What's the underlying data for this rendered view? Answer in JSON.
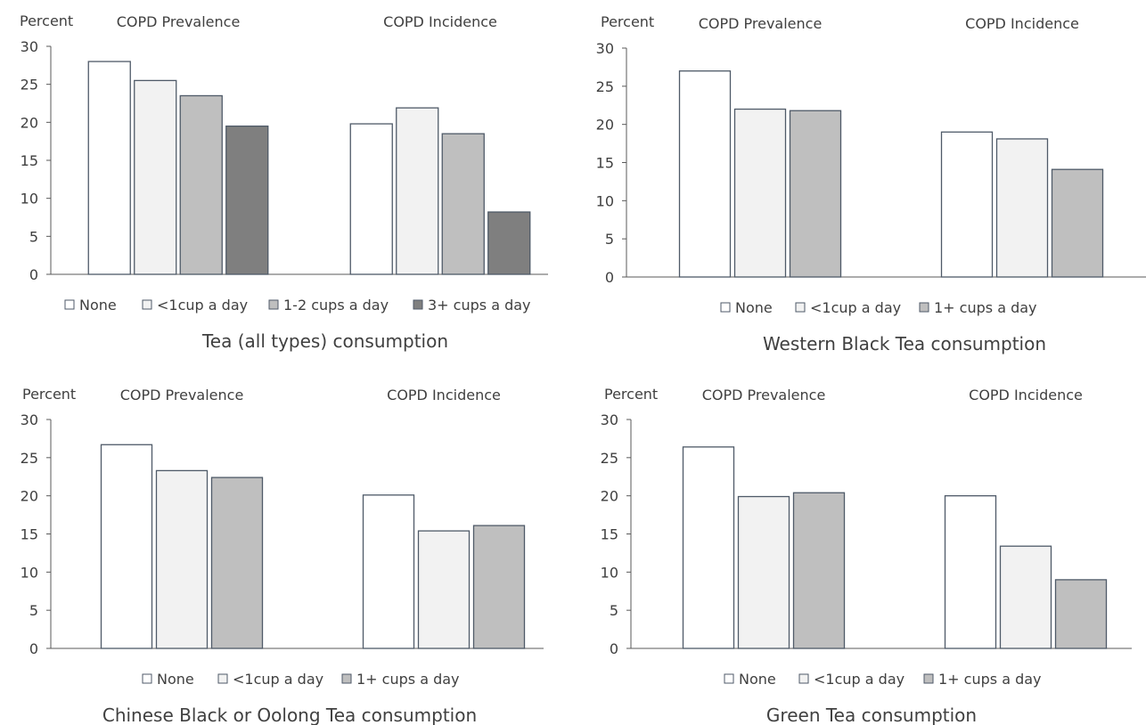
{
  "colors": {
    "None": "#ffffff",
    "<1cup a day": "#f2f2f2",
    "1-2 cups a day": "#bfbfbf",
    "3+ cups a day": "#7f7f7f",
    "1+ cups a day": "#bfbfbf",
    "bar_stroke": "#4f5a68",
    "axis": "#595959",
    "text": "#404040"
  },
  "chart_data": [
    {
      "type": "bar",
      "title": "Tea (all types) consumption",
      "ylabel": "Percent",
      "categories": [
        "COPD Prevalence",
        "COPD Incidence"
      ],
      "ylim": [
        0,
        30
      ],
      "yticks": [
        "0",
        "5",
        "10",
        "15",
        "20",
        "25",
        "30"
      ],
      "grid": false,
      "legend": "bottom",
      "series": [
        {
          "name": "None",
          "values": [
            28.0,
            19.8
          ]
        },
        {
          "name": "<1cup a day",
          "values": [
            25.5,
            21.9
          ]
        },
        {
          "name": "1-2 cups a day",
          "values": [
            23.5,
            18.5
          ]
        },
        {
          "name": "3+ cups a day",
          "values": [
            19.5,
            8.2
          ]
        }
      ]
    },
    {
      "type": "bar",
      "title": "Western Black Tea consumption",
      "ylabel": "Percent",
      "categories": [
        "COPD Prevalence",
        "COPD Incidence"
      ],
      "ylim": [
        0,
        30
      ],
      "yticks": [
        "0",
        "5",
        "10",
        "15",
        "20",
        "25",
        "30"
      ],
      "grid": false,
      "legend": "bottom",
      "series": [
        {
          "name": "None",
          "values": [
            27.0,
            19.0
          ]
        },
        {
          "name": "<1cup a day",
          "values": [
            22.0,
            18.1
          ]
        },
        {
          "name": "1+ cups a day",
          "values": [
            21.8,
            14.1
          ]
        }
      ]
    },
    {
      "type": "bar",
      "title": "Chinese Black or Oolong Tea consumption",
      "ylabel": "Percent",
      "categories": [
        "COPD Prevalence",
        "COPD Incidence"
      ],
      "ylim": [
        0,
        30
      ],
      "yticks": [
        "0",
        "5",
        "10",
        "15",
        "20",
        "25",
        "30"
      ],
      "grid": false,
      "legend": "bottom",
      "series": [
        {
          "name": "None",
          "values": [
            26.7,
            20.1
          ]
        },
        {
          "name": "<1cup a day",
          "values": [
            23.3,
            15.4
          ]
        },
        {
          "name": "1+ cups a day",
          "values": [
            22.4,
            16.1
          ]
        }
      ]
    },
    {
      "type": "bar",
      "title": "Green  Tea consumption",
      "ylabel": "Percent",
      "categories": [
        "COPD Prevalence",
        "COPD Incidence"
      ],
      "ylim": [
        0,
        30
      ],
      "yticks": [
        "0",
        "5",
        "10",
        "15",
        "20",
        "25",
        "30"
      ],
      "grid": false,
      "legend": "bottom",
      "series": [
        {
          "name": "None",
          "values": [
            26.4,
            20.0
          ]
        },
        {
          "name": "<1cup a day",
          "values": [
            19.9,
            13.4
          ]
        },
        {
          "name": "1+ cups a day",
          "values": [
            20.4,
            9.0
          ]
        }
      ]
    }
  ]
}
